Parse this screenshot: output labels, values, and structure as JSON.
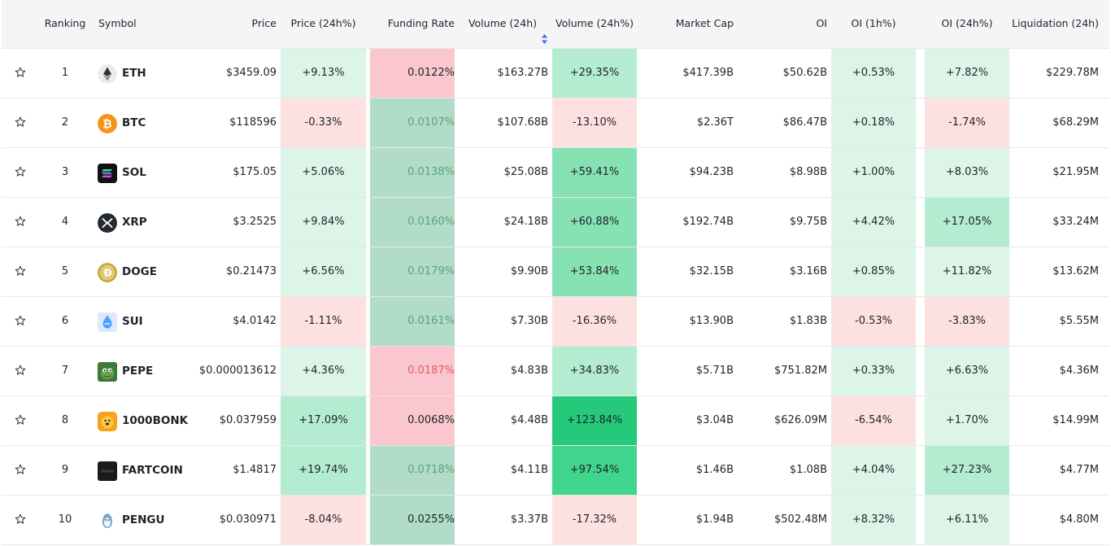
{
  "header": {
    "ranking": "Ranking",
    "symbol": "Symbol",
    "price": "Price",
    "price_24h": "Price (24h%)",
    "funding_rate": "Funding Rate",
    "volume_24h": "Volume (24h)",
    "volume_24h_pct": "Volume (24h%)",
    "market_cap": "Market Cap",
    "oi": "OI",
    "oi_1h": "OI (1h%)",
    "oi_24h": "OI (24h%)",
    "liquidation_24h": "Liquidation (24h)"
  },
  "sort": {
    "column": "Volume (24h)",
    "icon": "sort-up-down-icon",
    "active_color": "#3d6cf5"
  },
  "colors": {
    "strong_green": "#25c97a",
    "green": "#40d58c",
    "mid_green": "#86e1b3",
    "light_green": "#b4ecd1",
    "pale_green": "#dcf5e8",
    "pale_red": "#fde1e1",
    "red": "#f9c7cd",
    "funding_green_bg": "#b0dcc8",
    "funding_green_text": "#5aa27c",
    "funding_red_text": "#e05d61"
  },
  "rows": [
    {
      "rank": "1",
      "symbol": "ETH",
      "icon": "eth-icon",
      "price": "$3459.09",
      "price_24h": "+9.13%",
      "funding_rate": "0.0122%",
      "volume_24h": "$163.27B",
      "volume_24h_pct": "+29.35%",
      "market_cap": "$417.39B",
      "oi": "$50.62B",
      "oi_1h": "+0.53%",
      "oi_24h": "+7.82%",
      "liquidation": "$229.78M"
    },
    {
      "rank": "2",
      "symbol": "BTC",
      "icon": "btc-icon",
      "price": "$118596",
      "price_24h": "-0.33%",
      "funding_rate": "0.0107%",
      "volume_24h": "$107.68B",
      "volume_24h_pct": "-13.10%",
      "market_cap": "$2.36T",
      "oi": "$86.47B",
      "oi_1h": "+0.18%",
      "oi_24h": "-1.74%",
      "liquidation": "$68.29M"
    },
    {
      "rank": "3",
      "symbol": "SOL",
      "icon": "sol-icon",
      "price": "$175.05",
      "price_24h": "+5.06%",
      "funding_rate": "0.0138%",
      "volume_24h": "$25.08B",
      "volume_24h_pct": "+59.41%",
      "market_cap": "$94.23B",
      "oi": "$8.98B",
      "oi_1h": "+1.00%",
      "oi_24h": "+8.03%",
      "liquidation": "$21.95M"
    },
    {
      "rank": "4",
      "symbol": "XRP",
      "icon": "xrp-icon",
      "price": "$3.2525",
      "price_24h": "+9.84%",
      "funding_rate": "0.0160%",
      "volume_24h": "$24.18B",
      "volume_24h_pct": "+60.88%",
      "market_cap": "$192.74B",
      "oi": "$9.75B",
      "oi_1h": "+4.42%",
      "oi_24h": "+17.05%",
      "liquidation": "$33.24M"
    },
    {
      "rank": "5",
      "symbol": "DOGE",
      "icon": "doge-icon",
      "price": "$0.21473",
      "price_24h": "+6.56%",
      "funding_rate": "0.0179%",
      "volume_24h": "$9.90B",
      "volume_24h_pct": "+53.84%",
      "market_cap": "$32.15B",
      "oi": "$3.16B",
      "oi_1h": "+0.85%",
      "oi_24h": "+11.82%",
      "liquidation": "$13.62M"
    },
    {
      "rank": "6",
      "symbol": "SUI",
      "icon": "sui-icon",
      "price": "$4.0142",
      "price_24h": "-1.11%",
      "funding_rate": "0.0161%",
      "volume_24h": "$7.30B",
      "volume_24h_pct": "-16.36%",
      "market_cap": "$13.90B",
      "oi": "$1.83B",
      "oi_1h": "-0.53%",
      "oi_24h": "-3.83%",
      "liquidation": "$5.55M"
    },
    {
      "rank": "7",
      "symbol": "PEPE",
      "icon": "pepe-icon",
      "price": "$0.000013612",
      "price_24h": "+4.36%",
      "funding_rate": "0.0187%",
      "volume_24h": "$4.83B",
      "volume_24h_pct": "+34.83%",
      "market_cap": "$5.71B",
      "oi": "$751.82M",
      "oi_1h": "+0.33%",
      "oi_24h": "+6.63%",
      "liquidation": "$4.36M"
    },
    {
      "rank": "8",
      "symbol": "1000BONK",
      "icon": "bonk-icon",
      "price": "$0.037959",
      "price_24h": "+17.09%",
      "funding_rate": "0.0068%",
      "volume_24h": "$4.48B",
      "volume_24h_pct": "+123.84%",
      "market_cap": "$3.04B",
      "oi": "$626.09M",
      "oi_1h": "-6.54%",
      "oi_24h": "+1.70%",
      "liquidation": "$14.99M"
    },
    {
      "rank": "9",
      "symbol": "FARTCOIN",
      "icon": "fartcoin-icon",
      "price": "$1.4817",
      "price_24h": "+19.74%",
      "funding_rate": "0.0718%",
      "volume_24h": "$4.11B",
      "volume_24h_pct": "+97.54%",
      "market_cap": "$1.46B",
      "oi": "$1.08B",
      "oi_1h": "+4.04%",
      "oi_24h": "+27.23%",
      "liquidation": "$4.77M"
    },
    {
      "rank": "10",
      "symbol": "PENGU",
      "icon": "pengu-icon",
      "price": "$0.030971",
      "price_24h": "-8.04%",
      "funding_rate": "0.0255%",
      "volume_24h": "$3.37B",
      "volume_24h_pct": "-17.32%",
      "market_cap": "$1.94B",
      "oi": "$502.48M",
      "oi_1h": "+8.32%",
      "oi_24h": "+6.11%",
      "liquidation": "$4.80M"
    }
  ]
}
